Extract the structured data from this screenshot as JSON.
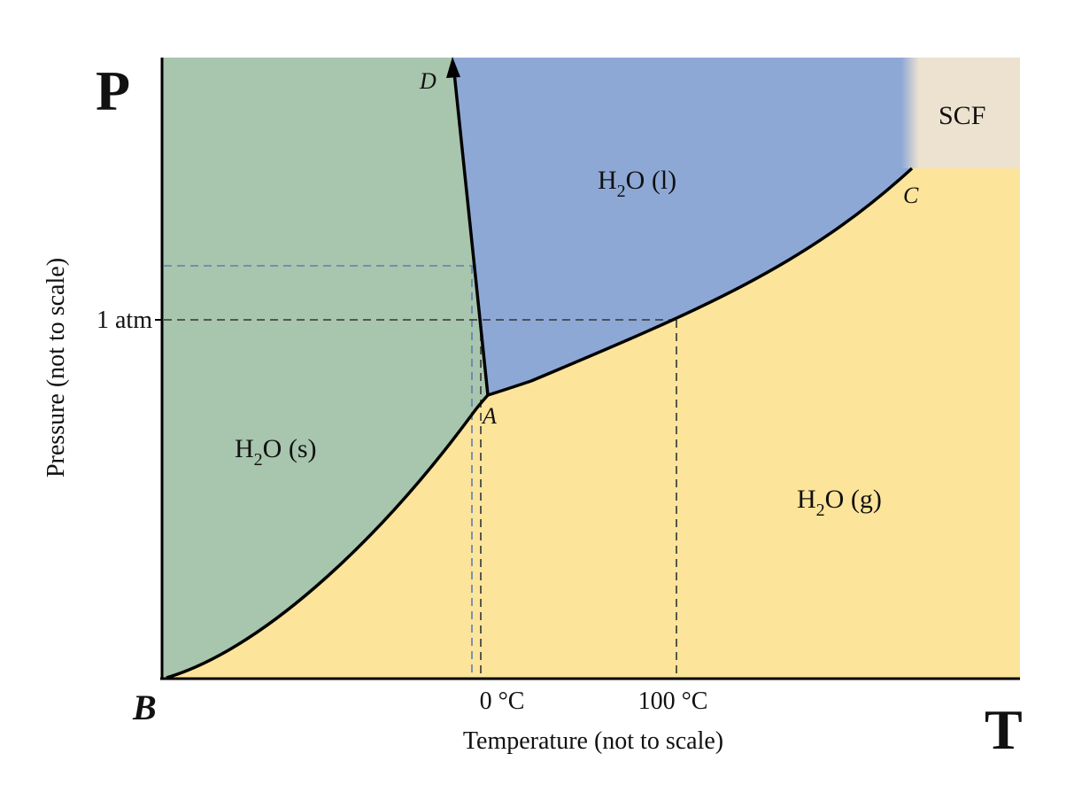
{
  "axes": {
    "y_symbol": "P",
    "x_symbol": "T",
    "y_title": "Pressure (not to scale)",
    "x_title": "Temperature (not to scale)",
    "y_tick": "1 atm",
    "x_ticks": [
      "0 °C",
      "100 °C"
    ]
  },
  "points": {
    "A": "A",
    "B": "B",
    "C": "C",
    "D": "D"
  },
  "regions": {
    "solid": {
      "pre": "H",
      "sub": "2",
      "post": "O (s)"
    },
    "liquid": {
      "pre": "H",
      "sub": "2",
      "post": "O (l)"
    },
    "gas": {
      "pre": "H",
      "sub": "2",
      "post": "O (g)"
    },
    "scf": "SCF"
  },
  "colors": {
    "solid": "#a8c5ad",
    "liquid": "#8ea8d6",
    "gas": "#fce49a",
    "scf": "#ece2cf",
    "curve": "#000000",
    "dashed_blue": "#5a7fb5",
    "dashed_dark": "#333333"
  }
}
